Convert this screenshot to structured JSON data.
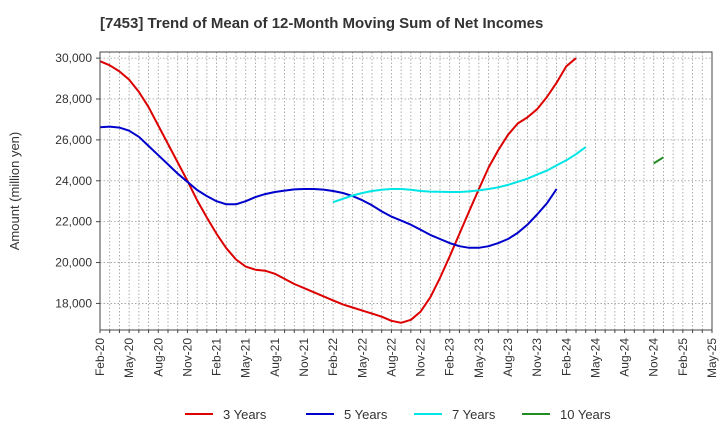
{
  "chart_data": {
    "type": "line",
    "title": "[7453]  Trend of Mean of 12-Month Moving Sum of Net Incomes",
    "ylabel": "Amount (million yen)",
    "xlabel": "",
    "ylim": [
      16700,
      30300
    ],
    "yticks": [
      18000,
      20000,
      22000,
      24000,
      26000,
      28000,
      30000
    ],
    "ytick_labels": [
      "18,000",
      "20,000",
      "22,000",
      "24,000",
      "26,000",
      "28,000",
      "30,000"
    ],
    "x_categories": [
      "Feb-20",
      "May-20",
      "Aug-20",
      "Nov-20",
      "Feb-21",
      "May-21",
      "Aug-21",
      "Nov-21",
      "Feb-22",
      "May-22",
      "Aug-22",
      "Nov-22",
      "Feb-23",
      "May-23",
      "Aug-23",
      "Nov-23",
      "Feb-24",
      "May-24",
      "Aug-24",
      "Nov-24",
      "Feb-25",
      "May-25"
    ],
    "grid": true,
    "legend_position": "bottom",
    "series": [
      {
        "name": "3 Years",
        "color": "#dd0000",
        "start": "Feb-20",
        "values": [
          29850,
          29650,
          29350,
          28950,
          28350,
          27600,
          26700,
          25800,
          24900,
          24000,
          23050,
          22200,
          21400,
          20700,
          20150,
          19800,
          19650,
          19600,
          19450,
          19200,
          18950,
          18750,
          18550,
          18350,
          18150,
          17950,
          17800,
          17650,
          17500,
          17350,
          17150,
          17050,
          17200,
          17600,
          18300,
          19250,
          20300,
          21400,
          22500,
          23600,
          24650,
          25500,
          26250,
          26800,
          27100,
          27500,
          28100,
          28800,
          29600,
          30000
        ]
      },
      {
        "name": "5 Years",
        "color": "#0000cc",
        "start": "Feb-20",
        "values": [
          26620,
          26650,
          26600,
          26450,
          26150,
          25700,
          25250,
          24800,
          24350,
          23950,
          23550,
          23250,
          23000,
          22850,
          22850,
          23000,
          23200,
          23350,
          23450,
          23520,
          23580,
          23600,
          23600,
          23570,
          23500,
          23400,
          23250,
          23050,
          22800,
          22500,
          22250,
          22050,
          21850,
          21600,
          21350,
          21150,
          20950,
          20800,
          20720,
          20720,
          20800,
          20950,
          21150,
          21450,
          21850,
          22350,
          22900,
          23600
        ]
      },
      {
        "name": "7 Years",
        "color": "#00e5e5",
        "start": "Feb-22",
        "values": [
          22950,
          23120,
          23280,
          23400,
          23500,
          23560,
          23600,
          23600,
          23560,
          23500,
          23470,
          23460,
          23450,
          23450,
          23480,
          23530,
          23600,
          23680,
          23800,
          23950,
          24100,
          24300,
          24500,
          24750,
          25000,
          25300,
          25650
        ]
      },
      {
        "name": "10 Years",
        "color": "#228b22",
        "start": "Nov-24",
        "values": [
          24850,
          25150
        ]
      }
    ]
  }
}
